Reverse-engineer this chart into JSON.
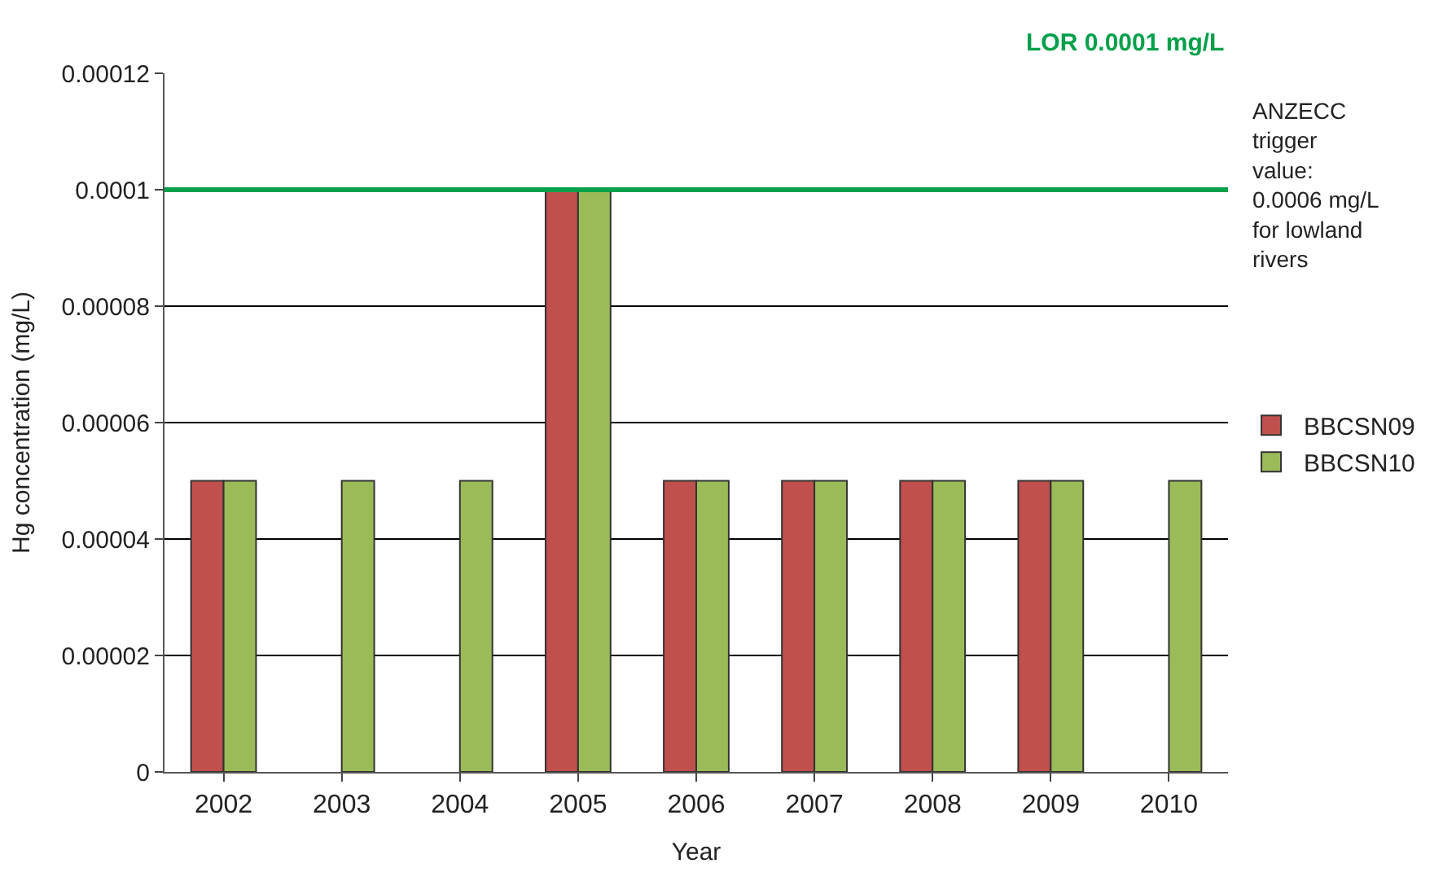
{
  "chart_data": {
    "type": "bar",
    "xlabel": "Year",
    "ylabel": "Hg concentration (mg/L)",
    "categories": [
      "2002",
      "2003",
      "2004",
      "2005",
      "2006",
      "2007",
      "2008",
      "2009",
      "2010"
    ],
    "series": [
      {
        "name": "BBCSN09",
        "color": "#c0504d",
        "values": [
          5e-05,
          null,
          null,
          0.0001,
          5e-05,
          5e-05,
          5e-05,
          5e-05,
          null
        ]
      },
      {
        "name": "BBCSN10",
        "color": "#9bbb59",
        "values": [
          5e-05,
          5e-05,
          5e-05,
          0.0001,
          5e-05,
          5e-05,
          5e-05,
          5e-05,
          5e-05
        ]
      }
    ],
    "ylim": [
      0,
      0.00012
    ],
    "yticks": [
      0,
      {
        "value": 2e-05,
        "label": "0.00002"
      },
      {
        "value": 4e-05,
        "label": "0.00004"
      },
      {
        "value": 6e-05,
        "label": "0.00006"
      },
      {
        "value": 8e-05,
        "label": "0.00008"
      },
      0.0001,
      0.00012
    ],
    "grid": "y",
    "legend": "right",
    "ref_lines": [
      {
        "axis": "y",
        "value": 0.0001,
        "label": "LOR 0.0001 mg/L",
        "color": "#00a04a"
      }
    ],
    "annotations": [
      "ANZECC trigger value: 0.0006 mg/L for lowland rivers"
    ]
  }
}
